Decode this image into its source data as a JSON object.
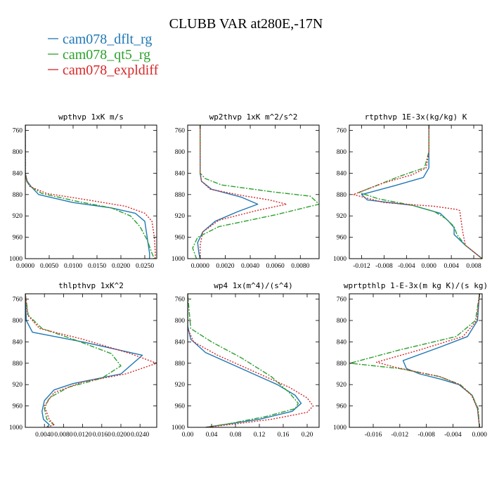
{
  "figure": {
    "title": "CLUBB VAR at280E,-17N",
    "legend": [
      {
        "label": "cam078_dflt_rg",
        "color": "#1f77b4",
        "dash": "solid"
      },
      {
        "label": "cam078_qt5_rg",
        "color": "#2ca02c",
        "dash": "dashdot"
      },
      {
        "label": "cam078_expldiff",
        "color": "#d62728",
        "dash": "dotted"
      }
    ]
  },
  "chart_data": [
    {
      "type": "line",
      "title": "wpthvp  1xK m/s",
      "xlim": [
        0,
        0.0275
      ],
      "ylim": [
        1000,
        750
      ],
      "xticks": [
        0,
        0.005,
        0.01,
        0.015,
        0.02,
        0.025
      ],
      "xtick_labels": [
        "0.0000",
        "0.0050",
        "0.0100",
        "0.0150",
        "0.0200",
        "0.0250"
      ],
      "yticks": [
        760,
        800,
        840,
        880,
        920,
        960,
        1000
      ],
      "ytick_labels": [
        "760",
        "800",
        "840",
        "880",
        "920",
        "960",
        "1000"
      ],
      "series": [
        {
          "name": "cam078_dflt_rg",
          "x": [
            0,
            0,
            0,
            0.0004,
            0.0012,
            0.0028,
            0.01,
            0.018,
            0.023,
            0.025,
            0.0255,
            0.026,
            0.026
          ],
          "y": [
            750,
            800,
            840,
            855,
            865,
            880,
            895,
            905,
            915,
            930,
            960,
            990,
            1000
          ]
        },
        {
          "name": "cam078_qt5_rg",
          "x": [
            0,
            0,
            0,
            0.0003,
            0.001,
            0.0035,
            0.011,
            0.018,
            0.022,
            0.024,
            0.0255,
            0.0265,
            0.027
          ],
          "y": [
            750,
            800,
            840,
            855,
            865,
            878,
            893,
            905,
            920,
            940,
            965,
            990,
            1000
          ]
        },
        {
          "name": "cam078_expldiff",
          "x": [
            0,
            0,
            0,
            0.0003,
            0.001,
            0.0045,
            0.013,
            0.021,
            0.025,
            0.0265,
            0.027,
            0.0272,
            0.0272
          ],
          "y": [
            750,
            800,
            840,
            855,
            865,
            878,
            890,
            902,
            915,
            930,
            960,
            990,
            1000
          ]
        }
      ]
    },
    {
      "type": "line",
      "title": "wp2thvp  1xK m^2/s^2",
      "xlim": [
        -0.001,
        0.0095
      ],
      "ylim": [
        1000,
        750
      ],
      "xticks": [
        0,
        0.002,
        0.004,
        0.006,
        0.008
      ],
      "xtick_labels": [
        "0.0000",
        "0.0020",
        "0.0040",
        "0.0060",
        "0.0080"
      ],
      "yticks": [
        760,
        800,
        840,
        880,
        920,
        960,
        1000
      ],
      "ytick_labels": [
        "760",
        "800",
        "840",
        "880",
        "920",
        "960",
        "1000"
      ],
      "series": [
        {
          "name": "cam078_dflt_rg",
          "x": [
            0,
            0,
            0,
            0.0001,
            0.0009,
            0.0033,
            0.0046,
            0.003,
            0.0012,
            0.0002,
            -0.0002,
            -0.0001,
            0
          ],
          "y": [
            750,
            800,
            840,
            855,
            870,
            885,
            898,
            912,
            930,
            950,
            970,
            990,
            1000
          ]
        },
        {
          "name": "cam078_qt5_rg",
          "x": [
            0,
            0,
            0,
            0.0004,
            0.0017,
            0.0058,
            0.0088,
            0.0095,
            0.006,
            0.0015,
            -0.0002,
            -0.0006,
            -0.0003
          ],
          "y": [
            750,
            800,
            840,
            850,
            862,
            875,
            883,
            898,
            918,
            940,
            960,
            980,
            1000
          ]
        },
        {
          "name": "cam078_expldiff",
          "x": [
            0,
            0,
            0,
            0.0001,
            0.0008,
            0.0034,
            0.0055,
            0.0069,
            0.0045,
            0.0015,
            0.0002,
            0,
            0
          ],
          "y": [
            750,
            800,
            840,
            855,
            870,
            882,
            890,
            898,
            910,
            928,
            950,
            975,
            1000
          ]
        }
      ]
    },
    {
      "type": "line",
      "title": "rtpthvp  1E-3x(kg/kg) K",
      "xlim": [
        -0.0142,
        0.0095
      ],
      "ylim": [
        1000,
        750
      ],
      "xticks": [
        -0.012,
        -0.008,
        -0.004,
        0,
        0.004,
        0.008
      ],
      "xtick_labels": [
        "-0.012",
        "-0.008",
        "-0.004",
        "0.000",
        "0.004",
        "0.008"
      ],
      "yticks": [
        760,
        800,
        840,
        880,
        920,
        960,
        1000
      ],
      "ytick_labels": [
        "760",
        "800",
        "840",
        "880",
        "920",
        "960",
        "1000"
      ],
      "series": [
        {
          "name": "cam078_dflt_rg",
          "x": [
            0,
            0,
            0,
            -0.001,
            -0.006,
            -0.012,
            -0.011,
            -0.003,
            0.002,
            0.0035,
            0.0045,
            0.0045,
            0.0065,
            0.0095
          ],
          "y": [
            750,
            800,
            830,
            848,
            863,
            880,
            890,
            900,
            915,
            930,
            942,
            955,
            975,
            1000
          ]
        },
        {
          "name": "cam078_qt5_rg",
          "x": [
            0,
            0,
            -0.0008,
            -0.005,
            -0.0125,
            -0.009,
            -0.003,
            0.001,
            0.003,
            0.0045,
            0.005,
            0.0065,
            0.0095
          ],
          "y": [
            750,
            800,
            830,
            845,
            876,
            888,
            900,
            912,
            925,
            940,
            955,
            975,
            1000
          ]
        },
        {
          "name": "cam078_expldiff",
          "x": [
            0,
            0,
            -0.0005,
            -0.003,
            -0.008,
            -0.0135,
            -0.008,
            0.001,
            0.005,
            0.0055,
            0.006,
            0.0065,
            0.0095
          ],
          "y": [
            750,
            800,
            830,
            843,
            858,
            880,
            895,
            902,
            908,
            910,
            948,
            975,
            1000
          ]
        }
      ]
    },
    {
      "type": "line",
      "title": "thlpthvp  1xK^2",
      "xlim": [
        0,
        0.0275
      ],
      "ylim": [
        1000,
        750
      ],
      "xticks": [
        0.004,
        0.008,
        0.012,
        0.016,
        0.02,
        0.024
      ],
      "xtick_labels": [
        "0.0040",
        "0.0080",
        "0.0120",
        "0.0160",
        "0.0200",
        "0.0240"
      ],
      "yticks": [
        760,
        800,
        840,
        880,
        920,
        960,
        1000
      ],
      "ytick_labels": [
        "760",
        "800",
        "840",
        "880",
        "920",
        "960",
        "1000"
      ],
      "series": [
        {
          "name": "cam078_dflt_rg",
          "x": [
            0,
            0.0002,
            0.0015,
            0.012,
            0.0245,
            0.02,
            0.01,
            0.006,
            0.004,
            0.0035,
            0.0038,
            0.005,
            0.0045
          ],
          "y": [
            750,
            800,
            822,
            840,
            865,
            900,
            918,
            930,
            950,
            970,
            985,
            995,
            1000
          ]
        },
        {
          "name": "cam078_qt5_rg",
          "x": [
            0,
            0.0006,
            0.0035,
            0.01,
            0.018,
            0.02,
            0.016,
            0.009,
            0.005,
            0.004,
            0.0045,
            0.006,
            0.0045
          ],
          "y": [
            750,
            790,
            815,
            835,
            862,
            885,
            908,
            925,
            945,
            965,
            985,
            995,
            1000
          ]
        },
        {
          "name": "cam078_expldiff",
          "x": [
            0,
            0.0005,
            0.003,
            0.012,
            0.022,
            0.0275,
            0.021,
            0.012,
            0.006,
            0.004,
            0.005,
            0.006,
            0.0045
          ],
          "y": [
            750,
            790,
            815,
            835,
            862,
            880,
            900,
            915,
            935,
            960,
            985,
            995,
            1000
          ]
        }
      ]
    },
    {
      "type": "line",
      "title": "wp4  1x(m^4)/(s^4)",
      "xlim": [
        0,
        0.22
      ],
      "ylim": [
        1000,
        750
      ],
      "xticks": [
        0,
        0.04,
        0.08,
        0.12,
        0.16,
        0.2
      ],
      "xtick_labels": [
        "0.00",
        "0.04",
        "0.08",
        "0.12",
        "0.16",
        "0.20"
      ],
      "yticks": [
        760,
        800,
        840,
        880,
        920,
        960,
        1000
      ],
      "ytick_labels": [
        "760",
        "800",
        "840",
        "880",
        "920",
        "960",
        "1000"
      ],
      "series": [
        {
          "name": "cam078_dflt_rg",
          "x": [
            0,
            0,
            0.005,
            0.03,
            0.09,
            0.15,
            0.18,
            0.19,
            0.175,
            0.12,
            0.06,
            0.03
          ],
          "y": [
            750,
            810,
            835,
            860,
            890,
            920,
            940,
            955,
            970,
            985,
            995,
            1000
          ]
        },
        {
          "name": "cam078_qt5_rg",
          "x": [
            0,
            0.005,
            0.04,
            0.09,
            0.14,
            0.17,
            0.185,
            0.18,
            0.13,
            0.07,
            0.03
          ],
          "y": [
            750,
            815,
            840,
            870,
            905,
            935,
            955,
            965,
            980,
            993,
            1000
          ]
        },
        {
          "name": "cam078_expldiff",
          "x": [
            0,
            0,
            0.01,
            0.05,
            0.11,
            0.17,
            0.2,
            0.21,
            0.2,
            0.14,
            0.07,
            0.03
          ],
          "y": [
            750,
            815,
            840,
            865,
            895,
            925,
            945,
            960,
            972,
            985,
            995,
            1000
          ]
        }
      ]
    },
    {
      "type": "line",
      "title": "wprtpthlp  1-E-3x(m kg K)/(s kg)",
      "xlim": [
        -0.0196,
        0.0004
      ],
      "ylim": [
        1000,
        750
      ],
      "xticks": [
        -0.016,
        -0.012,
        -0.008,
        -0.004,
        0
      ],
      "xtick_labels": [
        "-0.016",
        "-0.012",
        "-0.008",
        "-0.004",
        "0.000"
      ],
      "yticks": [
        760,
        800,
        840,
        880,
        920,
        960,
        1000
      ],
      "ytick_labels": [
        "760",
        "800",
        "840",
        "880",
        "920",
        "960",
        "1000"
      ],
      "series": [
        {
          "name": "cam078_dflt_rg",
          "x": [
            0,
            -0.0003,
            -0.0018,
            -0.006,
            -0.0115,
            -0.011,
            -0.009,
            -0.0058,
            -0.0031,
            -0.0011,
            -0.0003,
            0
          ],
          "y": [
            750,
            800,
            830,
            850,
            875,
            890,
            900,
            910,
            920,
            940,
            965,
            1000
          ]
        },
        {
          "name": "cam078_qt5_rg",
          "x": [
            0,
            -0.0006,
            -0.0035,
            -0.012,
            -0.0195,
            -0.012,
            -0.006,
            -0.0029,
            -0.0011,
            -0.0002,
            0
          ],
          "y": [
            750,
            800,
            830,
            855,
            880,
            890,
            905,
            920,
            940,
            965,
            1000
          ]
        },
        {
          "name": "cam078_expldiff",
          "x": [
            0,
            -0.0004,
            -0.0025,
            -0.009,
            -0.0155,
            -0.0125,
            -0.006,
            -0.003,
            -0.0012,
            -0.0003,
            0
          ],
          "y": [
            750,
            800,
            830,
            855,
            878,
            888,
            905,
            920,
            940,
            965,
            1000
          ]
        }
      ]
    }
  ]
}
